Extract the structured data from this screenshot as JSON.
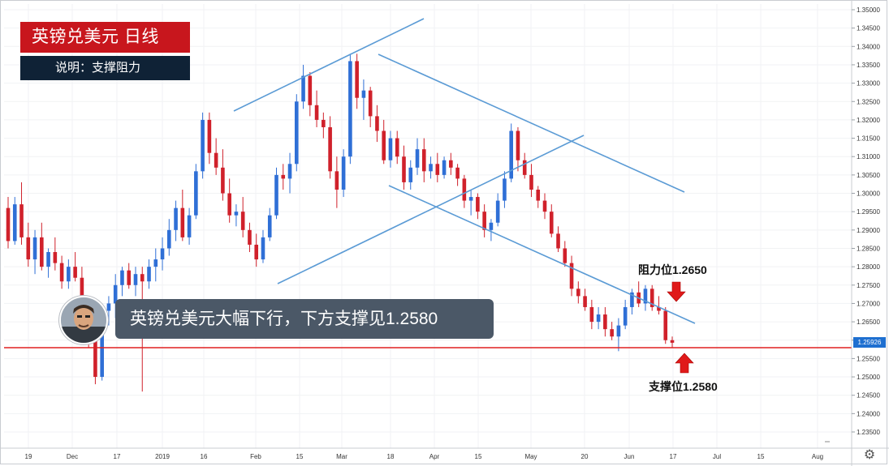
{
  "header": {
    "title": "英镑兑美元  日线",
    "subtitle": "说明：支撑阻力"
  },
  "callout": {
    "text": "英镑兑美元大幅下行，下方支撑见1.2580"
  },
  "annotations": {
    "resistance_label": "阻力位1.2650",
    "support_label": "支撑位1.2580"
  },
  "current_price_label": "1.25926",
  "colors": {
    "up": "#2f6fd6",
    "down": "#d0212b",
    "trendline": "#5b9bd5",
    "support_line": "#e02020",
    "arrow": "#e01a1a"
  },
  "icons": {
    "avatar": "person-photo",
    "settings": "gear-icon"
  },
  "chart_data": {
    "type": "candlestick",
    "title": "英镑兑美元  日线",
    "x_tick_labels": [
      "19",
      "Dec",
      "17",
      "2019",
      "16",
      "Feb",
      "15",
      "Mar",
      "18",
      "Apr",
      "15",
      "May",
      "20",
      "Jun",
      "17",
      "Jul",
      "15",
      "Aug"
    ],
    "y_tick_labels": [
      "1.35000",
      "1.34500",
      "1.34000",
      "1.33500",
      "1.33000",
      "1.32500",
      "1.32000",
      "1.31500",
      "1.31000",
      "1.30500",
      "1.30000",
      "1.29500",
      "1.29000",
      "1.28500",
      "1.28000",
      "1.27500",
      "1.27000",
      "1.26500",
      "1.26000",
      "1.25500",
      "1.25000",
      "1.24500",
      "1.24000",
      "1.23500"
    ],
    "ylim": [
      1.2325,
      1.3505
    ],
    "grid": true,
    "support_level": 1.258,
    "resistance_level": 1.265,
    "last_price": 1.25926,
    "candles_ohlc": [
      [
        1.296,
        1.299,
        1.285,
        1.287
      ],
      [
        1.287,
        1.299,
        1.286,
        1.297
      ],
      [
        1.297,
        1.303,
        1.286,
        1.288
      ],
      [
        1.288,
        1.292,
        1.28,
        1.282
      ],
      [
        1.282,
        1.29,
        1.278,
        1.288
      ],
      [
        1.288,
        1.292,
        1.279,
        1.28
      ],
      [
        1.28,
        1.285,
        1.277,
        1.284
      ],
      [
        1.284,
        1.288,
        1.279,
        1.281
      ],
      [
        1.281,
        1.283,
        1.274,
        1.276
      ],
      [
        1.276,
        1.282,
        1.274,
        1.28
      ],
      [
        1.28,
        1.284,
        1.276,
        1.277
      ],
      [
        1.277,
        1.28,
        1.268,
        1.27
      ],
      [
        1.27,
        1.272,
        1.258,
        1.26
      ],
      [
        1.26,
        1.262,
        1.248,
        1.25
      ],
      [
        1.25,
        1.269,
        1.249,
        1.268
      ],
      [
        1.268,
        1.272,
        1.264,
        1.27
      ],
      [
        1.27,
        1.278,
        1.266,
        1.275
      ],
      [
        1.275,
        1.28,
        1.272,
        1.279
      ],
      [
        1.279,
        1.281,
        1.274,
        1.275
      ],
      [
        1.275,
        1.28,
        1.272,
        1.278
      ],
      [
        1.278,
        1.28,
        1.246,
        1.276
      ],
      [
        1.276,
        1.282,
        1.274,
        1.28
      ],
      [
        1.28,
        1.285,
        1.276,
        1.282
      ],
      [
        1.282,
        1.288,
        1.279,
        1.285
      ],
      [
        1.285,
        1.293,
        1.283,
        1.29
      ],
      [
        1.29,
        1.298,
        1.287,
        1.296
      ],
      [
        1.296,
        1.301,
        1.287,
        1.288
      ],
      [
        1.288,
        1.296,
        1.286,
        1.294
      ],
      [
        1.294,
        1.308,
        1.293,
        1.306
      ],
      [
        1.306,
        1.322,
        1.304,
        1.32
      ],
      [
        1.32,
        1.322,
        1.308,
        1.311
      ],
      [
        1.311,
        1.315,
        1.305,
        1.307
      ],
      [
        1.307,
        1.312,
        1.298,
        1.3
      ],
      [
        1.3,
        1.304,
        1.292,
        1.294
      ],
      [
        1.294,
        1.297,
        1.291,
        1.295
      ],
      [
        1.295,
        1.299,
        1.288,
        1.29
      ],
      [
        1.29,
        1.292,
        1.284,
        1.286
      ],
      [
        1.286,
        1.289,
        1.28,
        1.282
      ],
      [
        1.282,
        1.29,
        1.281,
        1.288
      ],
      [
        1.288,
        1.296,
        1.287,
        1.294
      ],
      [
        1.294,
        1.307,
        1.293,
        1.305
      ],
      [
        1.305,
        1.308,
        1.301,
        1.304
      ],
      [
        1.304,
        1.311,
        1.3,
        1.308
      ],
      [
        1.308,
        1.327,
        1.306,
        1.325
      ],
      [
        1.325,
        1.335,
        1.323,
        1.332
      ],
      [
        1.332,
        1.333,
        1.321,
        1.324
      ],
      [
        1.324,
        1.328,
        1.318,
        1.32
      ],
      [
        1.32,
        1.322,
        1.315,
        1.318
      ],
      [
        1.318,
        1.321,
        1.304,
        1.306
      ],
      [
        1.306,
        1.31,
        1.296,
        1.301
      ],
      [
        1.301,
        1.312,
        1.299,
        1.31
      ],
      [
        1.31,
        1.338,
        1.308,
        1.336
      ],
      [
        1.336,
        1.338,
        1.323,
        1.326
      ],
      [
        1.326,
        1.331,
        1.32,
        1.328
      ],
      [
        1.328,
        1.329,
        1.318,
        1.321
      ],
      [
        1.321,
        1.324,
        1.314,
        1.317
      ],
      [
        1.317,
        1.32,
        1.308,
        1.309
      ],
      [
        1.309,
        1.317,
        1.307,
        1.315
      ],
      [
        1.315,
        1.317,
        1.308,
        1.31
      ],
      [
        1.31,
        1.313,
        1.301,
        1.303
      ],
      [
        1.303,
        1.309,
        1.301,
        1.307
      ],
      [
        1.307,
        1.315,
        1.305,
        1.312
      ],
      [
        1.312,
        1.315,
        1.303,
        1.306
      ],
      [
        1.306,
        1.31,
        1.304,
        1.308
      ],
      [
        1.308,
        1.311,
        1.303,
        1.305
      ],
      [
        1.305,
        1.31,
        1.304,
        1.309
      ],
      [
        1.309,
        1.311,
        1.305,
        1.307
      ],
      [
        1.307,
        1.308,
        1.302,
        1.304
      ],
      [
        1.304,
        1.305,
        1.296,
        1.298
      ],
      [
        1.298,
        1.301,
        1.294,
        1.299
      ],
      [
        1.299,
        1.3,
        1.293,
        1.295
      ],
      [
        1.295,
        1.297,
        1.288,
        1.29
      ],
      [
        1.29,
        1.293,
        1.287,
        1.292
      ],
      [
        1.292,
        1.3,
        1.291,
        1.298
      ],
      [
        1.298,
        1.306,
        1.296,
        1.304
      ],
      [
        1.304,
        1.319,
        1.303,
        1.317
      ],
      [
        1.317,
        1.318,
        1.306,
        1.309
      ],
      [
        1.309,
        1.311,
        1.304,
        1.305
      ],
      [
        1.305,
        1.308,
        1.299,
        1.301
      ],
      [
        1.301,
        1.302,
        1.296,
        1.298
      ],
      [
        1.298,
        1.3,
        1.293,
        1.295
      ],
      [
        1.295,
        1.297,
        1.288,
        1.289
      ],
      [
        1.289,
        1.291,
        1.284,
        1.285
      ],
      [
        1.285,
        1.287,
        1.28,
        1.281
      ],
      [
        1.281,
        1.283,
        1.272,
        1.274
      ],
      [
        1.274,
        1.276,
        1.27,
        1.272
      ],
      [
        1.272,
        1.274,
        1.268,
        1.269
      ],
      [
        1.269,
        1.271,
        1.263,
        1.265
      ],
      [
        1.265,
        1.269,
        1.263,
        1.267
      ],
      [
        1.267,
        1.269,
        1.261,
        1.263
      ],
      [
        1.263,
        1.265,
        1.26,
        1.261
      ],
      [
        1.261,
        1.266,
        1.257,
        1.264
      ],
      [
        1.264,
        1.271,
        1.263,
        1.269
      ],
      [
        1.269,
        1.274,
        1.267,
        1.273
      ],
      [
        1.273,
        1.276,
        1.269,
        1.27
      ],
      [
        1.27,
        1.275,
        1.268,
        1.274
      ],
      [
        1.274,
        1.275,
        1.268,
        1.269
      ],
      [
        1.269,
        1.272,
        1.267,
        1.268
      ],
      [
        1.268,
        1.269,
        1.259,
        1.26
      ],
      [
        1.26,
        1.261,
        1.258,
        1.2593
      ]
    ],
    "trendlines": [
      {
        "name": "",
        "from": [
          1.275,
          1.275
        ],
        "note": ""
      }
    ]
  }
}
